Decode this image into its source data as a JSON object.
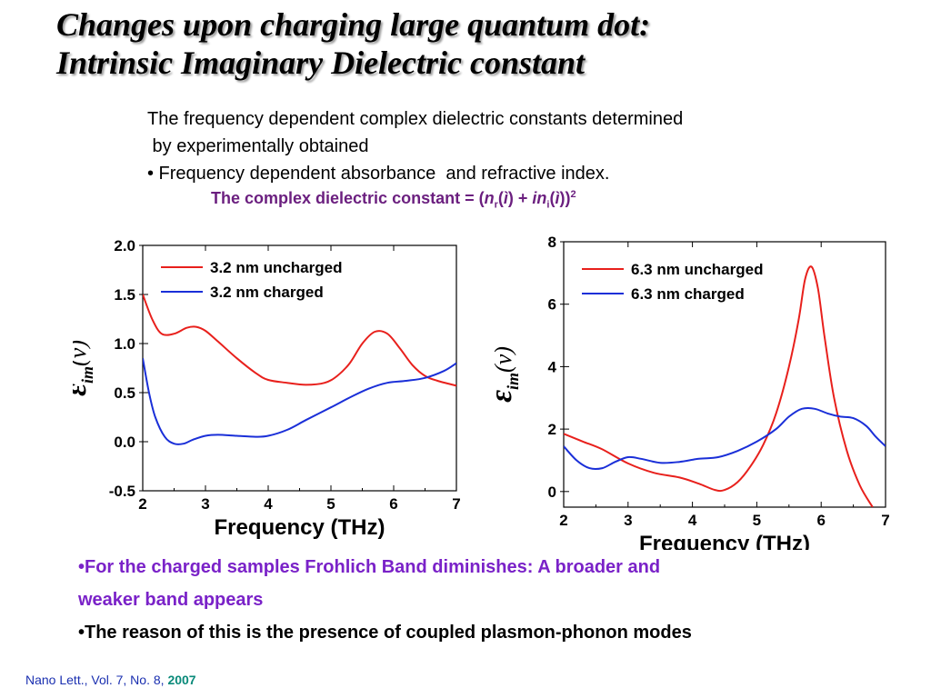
{
  "title": {
    "line1": "Changes upon charging large quantum dot:",
    "line2": "Intrinsic Imaginary Dielectric constant"
  },
  "intro": {
    "line1": "The frequency dependent complex dielectric constants determined",
    "line2": " by experimentally obtained",
    "line3": "• Frequency dependent absorbance  and refractive index."
  },
  "formula": {
    "prefix": "The complex dielectric constant = (",
    "n1": "n",
    "sub1": "r",
    "paren1": "(",
    "nu1": "ì",
    "mid": ") + ",
    "i_n": "in",
    "sub2": "i",
    "paren2": "(",
    "nu2": "ì",
    "close": "))",
    "power": "2"
  },
  "chart_data": [
    {
      "type": "line",
      "ylabel_symbol": "ε",
      "ylabel_sub": "im",
      "ylabel_arg": "(ν)",
      "xlabel": "Frequency (THz)",
      "xlim": [
        2,
        7
      ],
      "ylim": [
        -0.5,
        2.0
      ],
      "xticks": [
        "2",
        "3",
        "4",
        "5",
        "6",
        "7"
      ],
      "yticks": [
        "2.0",
        "1.5",
        "1.0",
        "0.5",
        "0.0",
        "-0.5"
      ],
      "ytick_values": [
        2.0,
        1.5,
        1.0,
        0.5,
        0.0,
        -0.5
      ],
      "legend_position": "top-left",
      "series": [
        {
          "name": "3.2 nm uncharged",
          "color": "#e8201c",
          "x": [
            2.0,
            2.15,
            2.3,
            2.5,
            2.7,
            2.85,
            3.0,
            3.2,
            3.5,
            3.8,
            4.0,
            4.3,
            4.6,
            4.9,
            5.1,
            5.3,
            5.5,
            5.7,
            5.9,
            6.1,
            6.3,
            6.5,
            6.7,
            7.0
          ],
          "y": [
            1.5,
            1.25,
            1.1,
            1.1,
            1.16,
            1.17,
            1.13,
            1.02,
            0.85,
            0.7,
            0.63,
            0.6,
            0.58,
            0.6,
            0.67,
            0.8,
            1.0,
            1.12,
            1.1,
            0.95,
            0.78,
            0.67,
            0.62,
            0.57
          ]
        },
        {
          "name": "3.2 nm charged",
          "color": "#1a2fd8",
          "x": [
            2.0,
            2.1,
            2.2,
            2.35,
            2.5,
            2.65,
            2.8,
            3.0,
            3.2,
            3.5,
            3.8,
            4.0,
            4.3,
            4.6,
            5.0,
            5.3,
            5.6,
            5.9,
            6.2,
            6.5,
            6.8,
            7.0
          ],
          "y": [
            0.85,
            0.5,
            0.25,
            0.05,
            -0.02,
            -0.02,
            0.02,
            0.06,
            0.07,
            0.06,
            0.05,
            0.06,
            0.12,
            0.22,
            0.35,
            0.45,
            0.54,
            0.6,
            0.62,
            0.65,
            0.72,
            0.8
          ]
        }
      ]
    },
    {
      "type": "line",
      "ylabel_symbol": "ε",
      "ylabel_sub": "im",
      "ylabel_arg": "(ν)",
      "xlabel": "Frequency (THz)",
      "xlim": [
        2,
        7
      ],
      "ylim": [
        -0.5,
        8
      ],
      "xticks": [
        "2",
        "3",
        "4",
        "5",
        "6",
        "7"
      ],
      "yticks": [
        "8",
        "6",
        "4",
        "2",
        "0"
      ],
      "ytick_values": [
        8,
        6,
        4,
        2,
        0
      ],
      "legend_position": "top-left",
      "series": [
        {
          "name": "6.3 nm uncharged",
          "color": "#e8201c",
          "x": [
            2.0,
            2.3,
            2.6,
            3.0,
            3.4,
            3.8,
            4.1,
            4.35,
            4.5,
            4.7,
            4.9,
            5.1,
            5.3,
            5.5,
            5.65,
            5.75,
            5.85,
            5.95,
            6.05,
            6.2,
            6.4,
            6.6,
            6.8
          ],
          "y": [
            1.85,
            1.6,
            1.35,
            0.9,
            0.6,
            0.45,
            0.25,
            0.05,
            0.05,
            0.3,
            0.8,
            1.5,
            2.5,
            4.0,
            5.5,
            6.8,
            7.2,
            6.5,
            5.0,
            3.0,
            1.3,
            0.2,
            -0.5
          ]
        },
        {
          "name": "6.3 nm charged",
          "color": "#1a2fd8",
          "x": [
            2.0,
            2.2,
            2.4,
            2.6,
            2.8,
            3.0,
            3.2,
            3.5,
            3.8,
            4.1,
            4.4,
            4.7,
            5.0,
            5.3,
            5.5,
            5.7,
            5.9,
            6.1,
            6.3,
            6.5,
            6.7,
            6.85,
            7.0
          ],
          "y": [
            1.45,
            1.0,
            0.75,
            0.75,
            0.95,
            1.1,
            1.05,
            0.92,
            0.95,
            1.05,
            1.1,
            1.3,
            1.6,
            2.0,
            2.4,
            2.65,
            2.65,
            2.5,
            2.4,
            2.35,
            2.1,
            1.75,
            1.45
          ]
        }
      ]
    }
  ],
  "bullets": {
    "purple_line1": "•For the charged samples Frohlich Band diminishes: A broader and",
    "purple_line2": "weaker band appears",
    "black_line": "•The reason of this is the presence of coupled plasmon-phonon modes"
  },
  "citation": {
    "text": "Nano Lett., Vol. 7, No. 8, ",
    "year": "2007"
  },
  "colors": {
    "uncharged": "#e8201c",
    "charged": "#1a2fd8",
    "formula": "#6b1f7f",
    "bullet_purple": "#7a22c8",
    "citation": "#1a2fb0",
    "citation_year": "#0a8a7a"
  }
}
